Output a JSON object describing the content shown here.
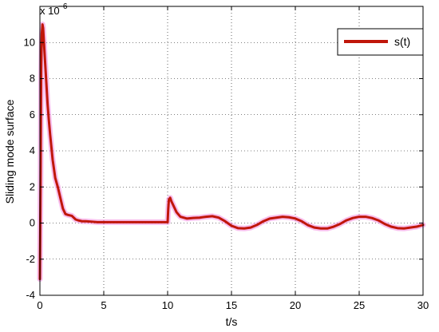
{
  "chart_data": {
    "type": "line",
    "xlabel": "t/s",
    "ylabel": "Sliding mode surface",
    "xlim": [
      0,
      30
    ],
    "ylim": [
      -4,
      12
    ],
    "xticks": [
      "0",
      "5",
      "10",
      "15",
      "20",
      "25",
      "30"
    ],
    "yticks": [
      "-4",
      "-2",
      "0",
      "2",
      "4",
      "6",
      "8",
      "10"
    ],
    "y_scale_factor": {
      "base": "x 10",
      "exponent": "−6"
    },
    "grid": true,
    "legend_position": "top-right",
    "series": [
      {
        "name": "s(t)",
        "color": "#c0160a",
        "glow_color": "#f070d8",
        "x": [
          0,
          0.05,
          0.1,
          0.15,
          0.2,
          0.25,
          0.3,
          0.4,
          0.5,
          0.6,
          0.7,
          0.8,
          0.9,
          1.0,
          1.2,
          1.4,
          1.6,
          1.8,
          2.0,
          2.2,
          2.5,
          2.8,
          3.0,
          3.3,
          3.6,
          4.0,
          4.5,
          5.0,
          6.0,
          7.0,
          8.0,
          9.0,
          10.0,
          10.05,
          10.1,
          10.2,
          10.3,
          10.5,
          10.7,
          11.0,
          11.5,
          12.0,
          12.5,
          13.0,
          13.5,
          14.0,
          14.5,
          15.0,
          15.5,
          16.0,
          16.5,
          17.0,
          17.5,
          18.0,
          18.5,
          19.0,
          19.5,
          20.0,
          20.5,
          21.0,
          21.5,
          22.0,
          22.5,
          23.0,
          23.5,
          24.0,
          24.5,
          25.0,
          25.5,
          26.0,
          26.5,
          27.0,
          27.5,
          28.0,
          28.5,
          29.0,
          29.5,
          30.0
        ],
        "y": [
          -3.1,
          2.0,
          8.5,
          10.5,
          11.0,
          10.8,
          10.2,
          9.0,
          7.8,
          6.6,
          5.7,
          4.9,
          4.2,
          3.5,
          2.5,
          2.0,
          1.4,
          0.8,
          0.5,
          0.45,
          0.4,
          0.2,
          0.15,
          0.1,
          0.1,
          0.08,
          0.05,
          0.05,
          0.05,
          0.05,
          0.05,
          0.05,
          0.05,
          0.8,
          1.3,
          1.4,
          1.2,
          0.9,
          0.6,
          0.35,
          0.25,
          0.28,
          0.3,
          0.35,
          0.38,
          0.3,
          0.1,
          -0.15,
          -0.28,
          -0.3,
          -0.25,
          -0.1,
          0.1,
          0.25,
          0.3,
          0.35,
          0.32,
          0.25,
          0.1,
          -0.12,
          -0.25,
          -0.3,
          -0.3,
          -0.2,
          -0.05,
          0.15,
          0.28,
          0.35,
          0.35,
          0.28,
          0.15,
          -0.05,
          -0.2,
          -0.28,
          -0.3,
          -0.25,
          -0.2,
          -0.1
        ]
      }
    ]
  }
}
